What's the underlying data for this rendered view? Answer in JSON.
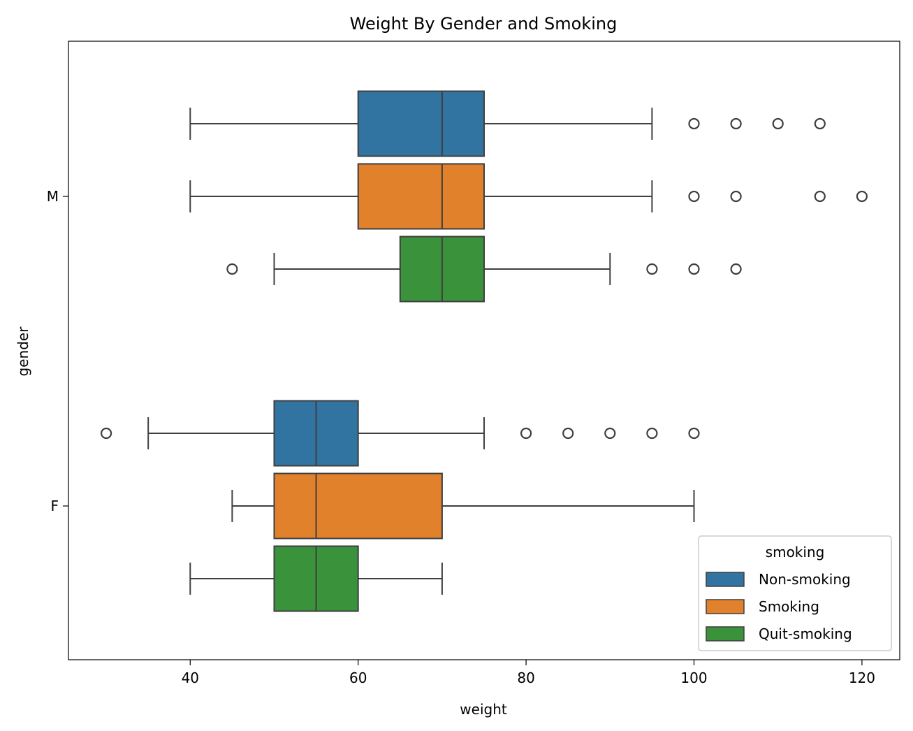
{
  "chart_data": {
    "type": "boxplot",
    "orientation": "horizontal",
    "title": "Weight By Gender and Smoking",
    "xlabel": "weight",
    "ylabel": "gender",
    "xlim": [
      25.5,
      124.5
    ],
    "xticks": [
      40,
      60,
      80,
      100,
      120
    ],
    "categories": [
      "M",
      "F"
    ],
    "legend": {
      "title": "smoking",
      "position": "lower-right"
    },
    "grid": false,
    "series": [
      {
        "name": "Non-smoking",
        "color": "#3274a1",
        "boxes": [
          {
            "category": "M",
            "whisker_low": 40,
            "q1": 60,
            "median": 70,
            "q3": 75,
            "whisker_high": 95,
            "outliers": [
              100,
              105,
              110,
              115
            ]
          },
          {
            "category": "F",
            "whisker_low": 35,
            "q1": 50,
            "median": 55,
            "q3": 60,
            "whisker_high": 75,
            "outliers": [
              30,
              80,
              85,
              90,
              95,
              100
            ]
          }
        ]
      },
      {
        "name": "Smoking",
        "color": "#e1812c",
        "boxes": [
          {
            "category": "M",
            "whisker_low": 40,
            "q1": 60,
            "median": 70,
            "q3": 75,
            "whisker_high": 95,
            "outliers": [
              100,
              105,
              115,
              120
            ]
          },
          {
            "category": "F",
            "whisker_low": 45,
            "q1": 50,
            "median": 55,
            "q3": 70,
            "whisker_high": 100,
            "outliers": []
          }
        ]
      },
      {
        "name": "Quit-smoking",
        "color": "#3a923a",
        "boxes": [
          {
            "category": "M",
            "whisker_low": 50,
            "q1": 65,
            "median": 70,
            "q3": 75,
            "whisker_high": 90,
            "outliers": [
              45,
              95,
              100,
              105
            ]
          },
          {
            "category": "F",
            "whisker_low": 40,
            "q1": 50,
            "median": 55,
            "q3": 60,
            "whisker_high": 70,
            "outliers": []
          }
        ]
      }
    ]
  }
}
